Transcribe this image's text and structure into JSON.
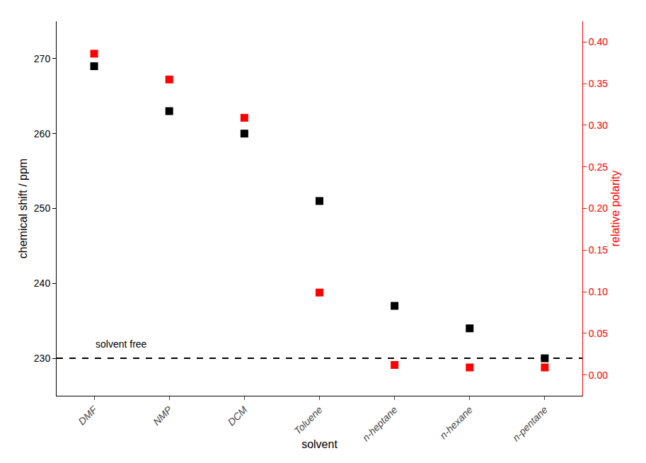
{
  "chart_data": {
    "type": "scatter",
    "categories": [
      "DMF",
      "NMP",
      "DCM",
      "Toluene",
      "n-heptane",
      "n-hexane",
      "n-pentane"
    ],
    "xlabel": "solvent",
    "ylabel": "chemical shift / ppm",
    "y2label": "relative polarity",
    "series": [
      {
        "color": "#000000",
        "marker": "square",
        "values": [
          269.0,
          263.0,
          260.0,
          251.0,
          237.0,
          234.0,
          230.0
        ]
      },
      {
        "color": "#ff0000",
        "marker": "square",
        "axis": "y2",
        "values": [
          0.386,
          0.355,
          0.309,
          0.099,
          0.012,
          0.009,
          0.009
        ]
      }
    ],
    "ylim": [
      225,
      275
    ],
    "yticks": [
      230,
      240,
      250,
      260,
      270
    ],
    "y2lim": [
      -0.025,
      0.425
    ],
    "y2ticks": [
      {
        "value": 0.0,
        "label": "0.00"
      },
      0.05,
      {
        "value": 0.1,
        "label": "0.10"
      },
      0.15,
      {
        "value": 0.2,
        "label": "0.20"
      },
      0.25,
      {
        "value": 0.3,
        "label": "0.30"
      },
      0.35,
      {
        "value": 0.4,
        "label": "0.40"
      }
    ],
    "grid": false,
    "annotations": [
      {
        "text": "solvent free",
        "y": 230.0,
        "line_style": "dashed",
        "color": "#000000"
      }
    ]
  }
}
